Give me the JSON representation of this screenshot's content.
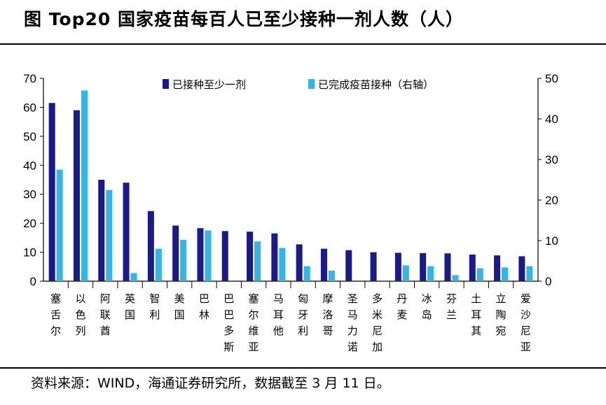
{
  "title": "图  Top20 国家疫苗每百人已至少接种一剂人数（人）",
  "source": "资料来源：WIND，海通证券研究所，数据截至 3 月 11 日。",
  "chart_data": {
    "type": "bar",
    "categories": [
      "塞舌尔",
      "以色列",
      "阿联酋",
      "英国",
      "智利",
      "美国",
      "巴林",
      "巴巴多斯",
      "塞尔维亚",
      "马耳他",
      "匈牙利",
      "摩洛哥",
      "圣马力诺",
      "多米尼加",
      "丹麦",
      "冰岛",
      "芬兰",
      "土耳其",
      "立陶宛",
      "爱沙尼亚"
    ],
    "series": [
      {
        "name": "已接种至少一剂",
        "axis": "left",
        "color": "#1a1a8c",
        "values": [
          61.5,
          59,
          35,
          34,
          24.2,
          19.2,
          18.3,
          17.3,
          17.1,
          16.5,
          12.7,
          11.2,
          10.7,
          10.0,
          9.8,
          9.7,
          9.6,
          9.2,
          8.9,
          8.6
        ]
      },
      {
        "name": "已完成疫苗接种（右轴）",
        "axis": "right",
        "color": "#33b5e8",
        "values": [
          27.5,
          47,
          22.5,
          2.0,
          8.0,
          10.2,
          12.5,
          null,
          9.8,
          8.2,
          3.7,
          2.6,
          null,
          null,
          3.9,
          3.7,
          1.5,
          3.2,
          3.4,
          3.7
        ]
      }
    ],
    "y_left": {
      "min": 0,
      "max": 70,
      "ticks": [
        0,
        10,
        20,
        30,
        40,
        50,
        60,
        70
      ]
    },
    "y_right": {
      "min": 0,
      "max": 50,
      "ticks": [
        0,
        10,
        20,
        30,
        40,
        50
      ]
    },
    "legend_position": "top-center",
    "grid": false
  }
}
